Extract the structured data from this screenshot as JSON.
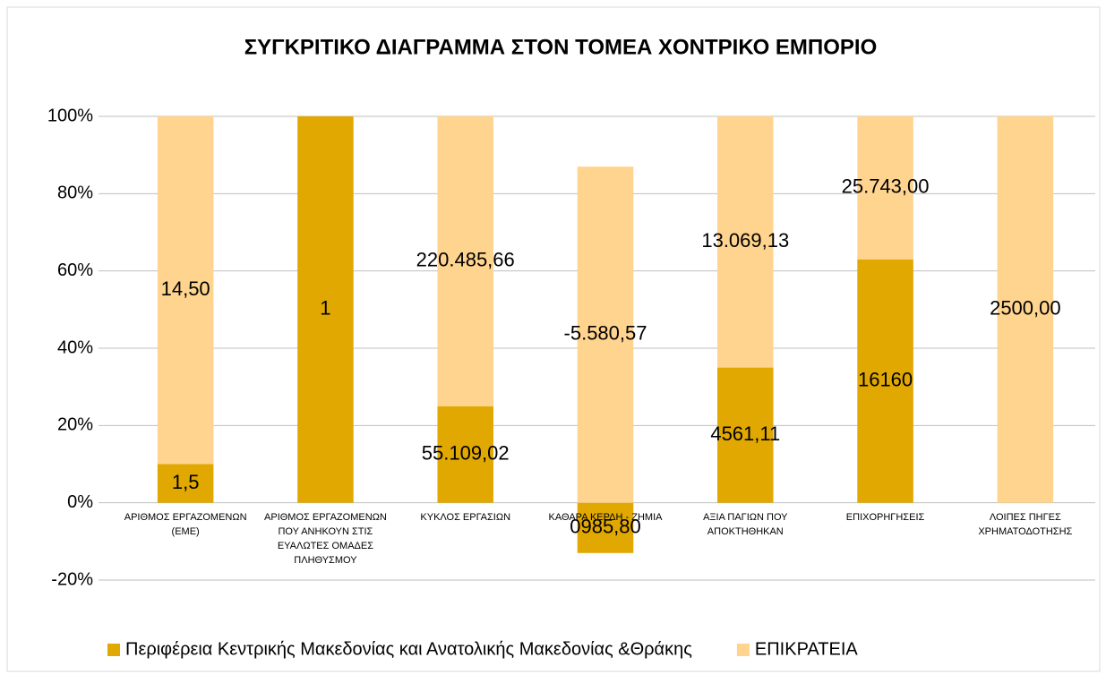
{
  "chart_data": {
    "type": "stacked_percent_bar",
    "title": "ΣΥΓΚΡΙΤΙΚΟ ΔΙΑΓΡΑΜΜΑ ΣΤΟΝ ΤΟΜΕΑ ΧΟΝΤΡΙΚΟ ΕΜΠΟΡΙΟ",
    "categories": [
      "ΑΡΙΘΜΟΣ ΕΡΓΑΖΟΜΕΝΩΝ (ΕΜΕ)",
      "ΑΡΙΘΜΟΣ ΕΡΓΑΖΟΜΕΝΩΝ ΠΟΥ ΑΝΗΚΟΥΝ ΣΤΙΣ ΕΥΑΛΩΤΕΣ ΟΜΑΔΕΣ ΠΛΗΘΥΣΜΟΥ",
      "ΚΥΚΛΟΣ ΕΡΓΑΣΙΩΝ",
      "ΚΑΘΑΡΑ ΚΕΡΔΗ - ΖΗΜΙΑ",
      "ΑΞΙΑ ΠΑΓΙΩΝ ΠΟΥ ΑΠΟΚΤΗΘΗΚΑΝ",
      "ΕΠΙΧΟΡΗΓΗΣΕΙΣ",
      "ΛΟΙΠΕΣ ΠΗΓΕΣ ΧΡΗΜΑΤΟΔΟΤΗΣΗΣ"
    ],
    "series": [
      {
        "name": "Περιφέρεια Κεντρικής Μακεδονίας και Ανατολικής Μακεδονίας &Θράκης",
        "color": "#e0a800",
        "values": [
          10,
          100,
          25,
          -13,
          35,
          63,
          0
        ],
        "labels": [
          "1,5",
          "1",
          "55.109,02",
          "0985,80",
          "4561,11",
          "16160",
          null
        ]
      },
      {
        "name": "ΕΠΙΚΡΑΤΕΙΑ",
        "color": "#ffd48f",
        "values": [
          90,
          0,
          75,
          87,
          65,
          37,
          100
        ],
        "labels": [
          "14,50",
          null,
          "220.485,66",
          "-5.580,57",
          "13.069,13",
          "25.743,00",
          "2500,00"
        ]
      }
    ],
    "ylim": [
      -20,
      100
    ],
    "yticks": [
      {
        "value": -20,
        "label": "-20%"
      },
      {
        "value": 0,
        "label": "0%"
      },
      {
        "value": 20,
        "label": "20%"
      },
      {
        "value": 40,
        "label": "40%"
      },
      {
        "value": 60,
        "label": "60%"
      },
      {
        "value": 80,
        "label": "80%"
      },
      {
        "value": 100,
        "label": "100%"
      }
    ],
    "grid": true,
    "legend": "bottom"
  }
}
